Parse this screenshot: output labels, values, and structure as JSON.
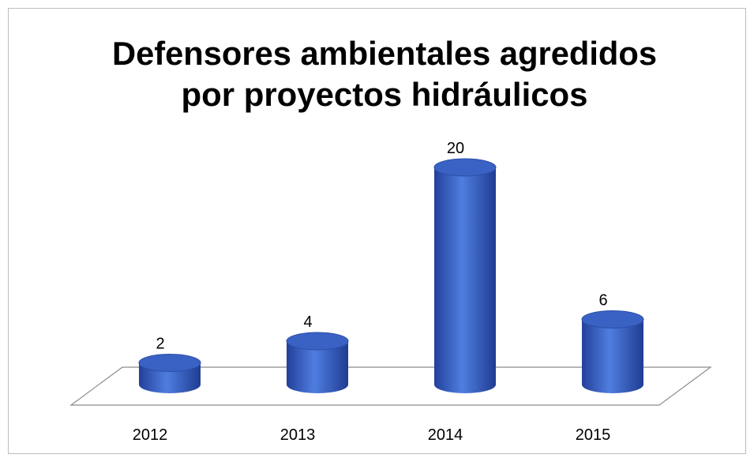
{
  "chart_data": {
    "type": "bar3d",
    "title": [
      "Defensores ambientales agredidos",
      "por proyectos hidráulicos"
    ],
    "categories": [
      "2012",
      "2013",
      "2014",
      "2015"
    ],
    "values": [
      2,
      4,
      20,
      6
    ],
    "color": "#3a62c4"
  }
}
